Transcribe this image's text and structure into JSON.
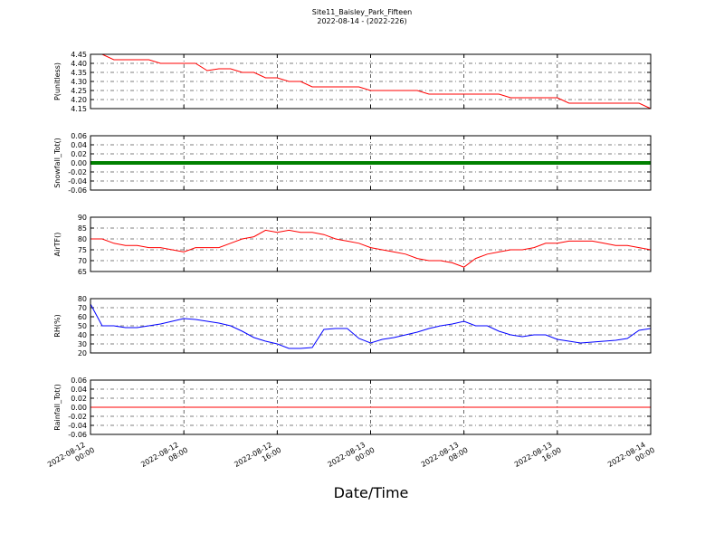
{
  "chart_data": {
    "type": "line",
    "title": "Site11_Baisley_Park_Fifteen",
    "subtitle": "2022-08-14 - (2022-226)",
    "xlabel": "Date/Time",
    "grid": true,
    "xlim": [
      "2022-08-12 00:00",
      "2022-08-14 00:00"
    ],
    "xticks": [
      "2022-08-12 00:00",
      "2022-08-12 08:00",
      "2022-08-12 16:00",
      "2022-08-13 00:00",
      "2022-08-13 08:00",
      "2022-08-13 16:00",
      "2022-08-14 00:00"
    ],
    "x": [
      "2022-08-12 00:00",
      "2022-08-12 01:00",
      "2022-08-12 02:00",
      "2022-08-12 03:00",
      "2022-08-12 04:00",
      "2022-08-12 05:00",
      "2022-08-12 06:00",
      "2022-08-12 07:00",
      "2022-08-12 08:00",
      "2022-08-12 09:00",
      "2022-08-12 10:00",
      "2022-08-12 11:00",
      "2022-08-12 12:00",
      "2022-08-12 13:00",
      "2022-08-12 14:00",
      "2022-08-12 15:00",
      "2022-08-12 16:00",
      "2022-08-12 17:00",
      "2022-08-12 18:00",
      "2022-08-12 19:00",
      "2022-08-12 20:00",
      "2022-08-12 21:00",
      "2022-08-12 22:00",
      "2022-08-12 23:00",
      "2022-08-13 00:00",
      "2022-08-13 01:00",
      "2022-08-13 02:00",
      "2022-08-13 03:00",
      "2022-08-13 04:00",
      "2022-08-13 05:00",
      "2022-08-13 06:00",
      "2022-08-13 07:00",
      "2022-08-13 08:00",
      "2022-08-13 09:00",
      "2022-08-13 10:00",
      "2022-08-13 11:00",
      "2022-08-13 12:00",
      "2022-08-13 13:00",
      "2022-08-13 14:00",
      "2022-08-13 15:00",
      "2022-08-13 16:00",
      "2022-08-13 17:00",
      "2022-08-13 18:00",
      "2022-08-13 19:00",
      "2022-08-13 20:00",
      "2022-08-13 21:00",
      "2022-08-13 22:00",
      "2022-08-13 23:00",
      "2022-08-14 00:00"
    ],
    "panels": [
      {
        "ylabel": "P(unitless)",
        "color": "#ff0000",
        "ylim": [
          4.15,
          4.45
        ],
        "yticks": [
          4.15,
          {
            "value": 4.2,
            "label": "4.20"
          },
          4.25,
          {
            "value": 4.3,
            "label": "4.30"
          },
          4.35,
          {
            "value": 4.4,
            "label": "4.40"
          },
          4.45
        ],
        "values": [
          4.45,
          4.45,
          4.42,
          4.42,
          4.42,
          4.42,
          4.4,
          4.4,
          4.4,
          4.4,
          4.36,
          4.37,
          4.37,
          4.35,
          4.35,
          4.32,
          4.32,
          4.3,
          4.3,
          4.27,
          4.27,
          4.27,
          4.27,
          4.27,
          4.25,
          4.25,
          4.25,
          4.25,
          4.25,
          4.23,
          4.23,
          4.23,
          4.23,
          4.23,
          4.23,
          4.23,
          4.21,
          4.21,
          4.21,
          4.21,
          4.21,
          4.18,
          4.18,
          4.18,
          4.18,
          4.18,
          4.18,
          4.18,
          4.15
        ]
      },
      {
        "ylabel": "Snowfall_Tot()",
        "color": "#008000",
        "ylim": [
          -0.06,
          0.06
        ],
        "yticks": [
          -0.06,
          -0.04,
          -0.02,
          {
            "value": 0,
            "label": "0.00"
          },
          0.02,
          0.04,
          0.06
        ],
        "values": [
          0,
          0,
          0,
          0,
          0,
          0,
          0,
          0,
          0,
          0,
          0,
          0,
          0,
          0,
          0,
          0,
          0,
          0,
          0,
          0,
          0,
          0,
          0,
          0,
          0,
          0,
          0,
          0,
          0,
          0,
          0,
          0,
          0,
          0,
          0,
          0,
          0,
          0,
          0,
          0,
          0,
          0,
          0,
          0,
          0,
          0,
          0,
          0,
          0
        ]
      },
      {
        "ylabel": "AirTF()",
        "color": "#ff0000",
        "ylim": [
          65,
          90
        ],
        "yticks": [
          65,
          70,
          75,
          80,
          85,
          90
        ],
        "values": [
          80,
          80,
          78,
          77,
          77,
          76,
          76,
          75,
          74,
          76,
          76,
          76,
          78,
          80,
          81,
          84,
          83,
          84,
          83,
          83,
          82,
          80,
          79,
          78,
          76,
          75,
          74,
          73,
          71,
          70,
          70,
          69,
          67,
          71,
          73,
          74,
          75,
          75,
          76,
          78,
          78,
          79,
          79,
          79,
          78,
          77,
          77,
          76,
          75
        ]
      },
      {
        "ylabel": "RH(%)",
        "color": "#0000ff",
        "ylim": [
          20,
          80
        ],
        "yticks": [
          20,
          30,
          40,
          50,
          60,
          70,
          80
        ],
        "values": [
          74,
          50,
          50,
          48,
          48,
          50,
          52,
          55,
          58,
          57,
          55,
          53,
          50,
          44,
          37,
          33,
          30,
          25,
          25,
          26,
          46,
          47,
          47,
          36,
          31,
          35,
          37,
          40,
          43,
          47,
          50,
          52,
          55,
          50,
          50,
          44,
          40,
          38,
          40,
          40,
          35,
          33,
          31,
          32,
          33,
          34,
          36,
          45,
          47
        ]
      },
      {
        "ylabel": "Rainfall_Tot()",
        "color": "#ff0000",
        "ylim": [
          -0.06,
          0.06
        ],
        "yticks": [
          -0.06,
          -0.04,
          -0.02,
          {
            "value": 0,
            "label": "0.00"
          },
          0.02,
          0.04,
          0.06
        ],
        "values": [
          0,
          0,
          0,
          0,
          0,
          0,
          0,
          0,
          0,
          0,
          0,
          0,
          0,
          0,
          0,
          0,
          0,
          0,
          0,
          0,
          0,
          0,
          0,
          0,
          0,
          0,
          0,
          0,
          0,
          0,
          0,
          0,
          0,
          0,
          0,
          0,
          0,
          0,
          0,
          0,
          0,
          0,
          0,
          0,
          0,
          0,
          0,
          0,
          0
        ]
      }
    ]
  }
}
